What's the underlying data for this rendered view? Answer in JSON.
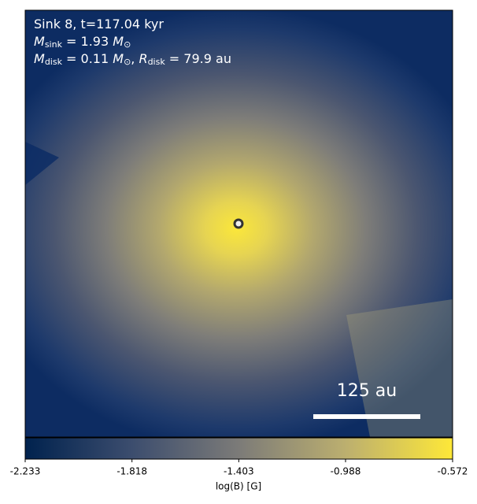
{
  "chart_data": {
    "type": "image",
    "annotation_lines": [
      [
        "Sink 8, t=117.04 kyr"
      ],
      [
        "M",
        "sink",
        " = 1.93 ",
        "M",
        "⊙"
      ],
      [
        "M",
        "disk",
        " = 0.11 ",
        "M",
        "⊙",
        ", ",
        "R",
        "disk",
        " = 79.9 au"
      ]
    ],
    "scale_bar_label": "125 au",
    "colorbar_label": "log(B) [G]",
    "clim": [
      -2.233,
      -0.572
    ],
    "cticks": [
      -2.233,
      -1.818,
      -1.403,
      -0.988,
      -0.572
    ],
    "colormap": "cividis"
  }
}
